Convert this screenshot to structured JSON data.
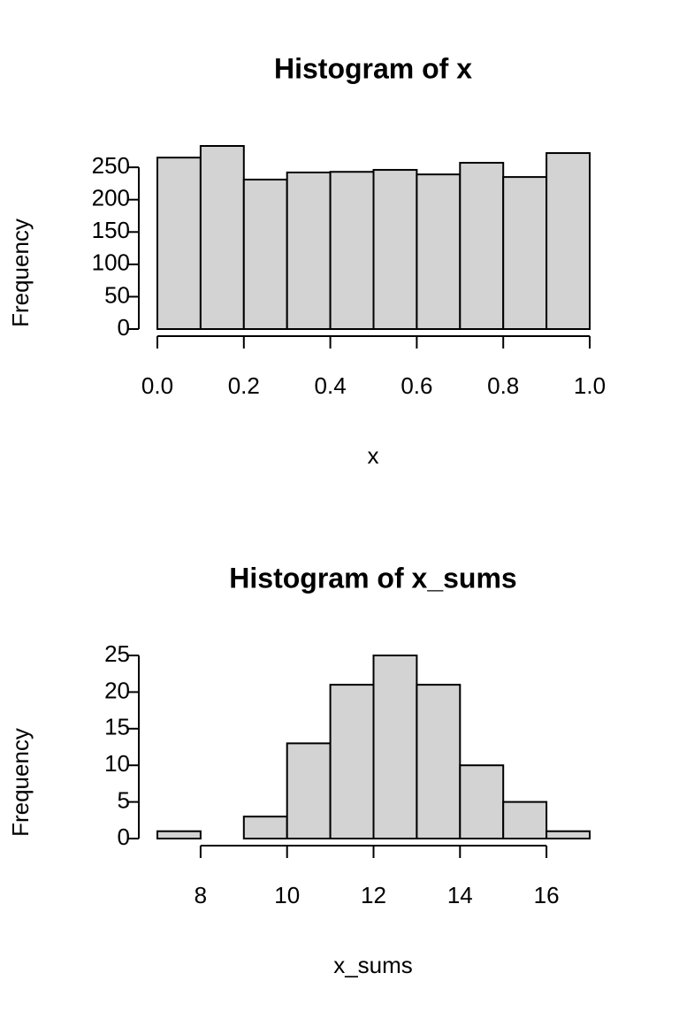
{
  "chart_data": [
    {
      "type": "histogram",
      "title": "Histogram of x",
      "x_label": "x",
      "y_label": "Frequency",
      "bins": [
        0,
        0.1,
        0.2,
        0.3,
        0.4,
        0.5,
        0.6,
        0.7,
        0.8,
        0.9,
        1
      ],
      "values": [
        265,
        283,
        231,
        242,
        243,
        246,
        239,
        257,
        235,
        272
      ],
      "color": "#d3d3d3",
      "xlim": [
        0,
        1
      ],
      "xticks": [
        {
          "value": 0,
          "label": "0.0"
        },
        0.2,
        0.4,
        0.6,
        0.8,
        {
          "value": 1,
          "label": "1.0"
        }
      ],
      "ylim": [
        0,
        283
      ],
      "yticks": [
        0,
        50,
        100,
        150,
        200,
        250
      ]
    },
    {
      "type": "histogram",
      "title": "Histogram of x_sums",
      "x_label": "x_sums",
      "y_label": "Frequency",
      "bins": [
        7,
        8,
        9,
        10,
        11,
        12,
        13,
        14,
        15,
        16,
        17
      ],
      "values": [
        1,
        0,
        3,
        13,
        21,
        25,
        21,
        10,
        5,
        1
      ],
      "color": "#d3d3d3",
      "xlim": [
        7,
        17
      ],
      "xticks": [
        8,
        10,
        12,
        14,
        16
      ],
      "ylim": [
        0,
        25
      ],
      "yticks": [
        0,
        5,
        10,
        15,
        20,
        25
      ]
    }
  ]
}
